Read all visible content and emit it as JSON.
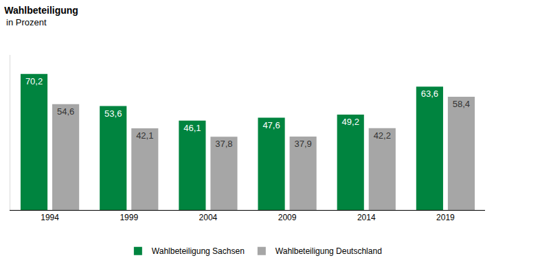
{
  "chart_data": {
    "type": "bar",
    "title": "Wahlbeteiligung",
    "subtitle": "in Prozent",
    "categories": [
      "1994",
      "1999",
      "2004",
      "2009",
      "2014",
      "2019"
    ],
    "series": [
      {
        "name": "Wahlbeteiligung Sachsen",
        "color": "#00843f",
        "values": [
          70.2,
          53.6,
          46.1,
          47.6,
          49.2,
          63.6
        ],
        "value_labels": [
          "70,2",
          "53,6",
          "46,1",
          "47,6",
          "49,2",
          "63,6"
        ]
      },
      {
        "name": "Wahlbeteiligung Deutschland",
        "color": "#a6a6a6",
        "values": [
          54.6,
          42.1,
          37.8,
          37.9,
          42.2,
          58.4
        ],
        "value_labels": [
          "54,6",
          "42,1",
          "37,8",
          "37,9",
          "42,2",
          "58,4"
        ]
      }
    ],
    "ylim": [
      0,
      80
    ],
    "yticks": [],
    "grid": false,
    "legend": "bottom",
    "data_labels": true,
    "tick_labels": "x"
  }
}
